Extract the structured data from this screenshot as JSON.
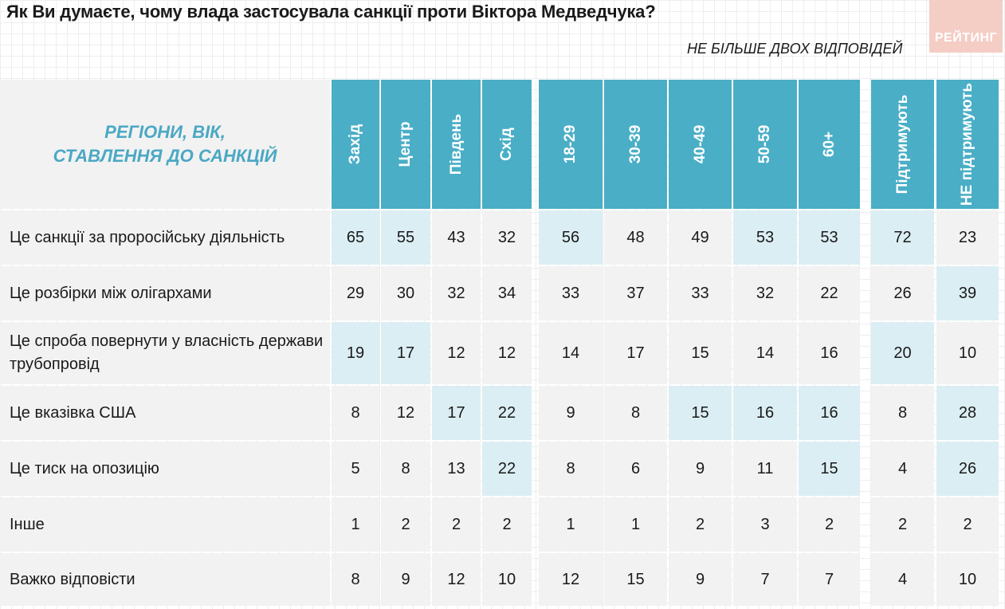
{
  "title": "Як Ви думаєте, чому влада застосувала санкції проти Віктора Медведчука?",
  "subtitle": "НЕ БІЛЬШЕ ДВОХ ВІДПОВІДЕЙ",
  "logo_text": "РЕЙТИНГ",
  "corner_label": "РЕГІОНИ, ВІК,\nСТАВЛЕННЯ ДО САНКЦІЙ",
  "colors": {
    "header": "#4aaec6",
    "highlight": "#dbeef4",
    "cell": "#f2f2f2",
    "corner_text": "#4aa8c4",
    "logo": "#f4cdc5"
  },
  "chart_data": {
    "type": "table",
    "columns": [
      "Захід",
      "Центр",
      "Південь",
      "Схід",
      "18-29",
      "30-39",
      "40-49",
      "50-59",
      "60+",
      "Підтримують",
      "НЕ підтримують"
    ],
    "column_groups": [
      [
        "Захід",
        "Центр",
        "Південь",
        "Схід"
      ],
      [
        "18-29",
        "30-39",
        "40-49",
        "50-59",
        "60+"
      ],
      [
        "Підтримують",
        "НЕ підтримують"
      ]
    ],
    "rows": [
      {
        "label": "Це санкції за проросійську діяльність",
        "values": [
          65,
          55,
          43,
          32,
          56,
          48,
          49,
          53,
          53,
          72,
          23
        ],
        "highlight": [
          1,
          1,
          0,
          0,
          1,
          0,
          0,
          1,
          1,
          1,
          0
        ]
      },
      {
        "label": "Це розбірки між олігархами",
        "values": [
          29,
          30,
          32,
          34,
          33,
          37,
          33,
          32,
          22,
          26,
          39
        ],
        "highlight": [
          0,
          0,
          0,
          0,
          0,
          0,
          0,
          0,
          0,
          0,
          1
        ]
      },
      {
        "label": "Це спроба повернути у власність держави трубопровід",
        "values": [
          19,
          17,
          12,
          12,
          14,
          17,
          15,
          14,
          16,
          20,
          10
        ],
        "highlight": [
          1,
          1,
          0,
          0,
          0,
          0,
          0,
          0,
          0,
          1,
          0
        ]
      },
      {
        "label": "Це вказівка США",
        "values": [
          8,
          12,
          17,
          22,
          9,
          8,
          15,
          16,
          16,
          8,
          28
        ],
        "highlight": [
          0,
          0,
          1,
          1,
          0,
          0,
          1,
          1,
          1,
          0,
          1
        ]
      },
      {
        "label": "Це тиск на опозицію",
        "values": [
          5,
          8,
          13,
          22,
          8,
          6,
          9,
          11,
          15,
          4,
          26
        ],
        "highlight": [
          0,
          0,
          0,
          1,
          0,
          0,
          0,
          0,
          1,
          0,
          1
        ]
      },
      {
        "label": "Інше",
        "values": [
          1,
          2,
          2,
          2,
          1,
          1,
          2,
          3,
          2,
          2,
          2
        ],
        "highlight": [
          0,
          0,
          0,
          0,
          0,
          0,
          0,
          0,
          0,
          0,
          0
        ]
      },
      {
        "label": "Важко відповісти",
        "values": [
          8,
          9,
          12,
          10,
          12,
          15,
          9,
          7,
          7,
          4,
          10
        ],
        "highlight": [
          0,
          0,
          0,
          0,
          0,
          0,
          0,
          0,
          0,
          0,
          0
        ]
      }
    ]
  }
}
